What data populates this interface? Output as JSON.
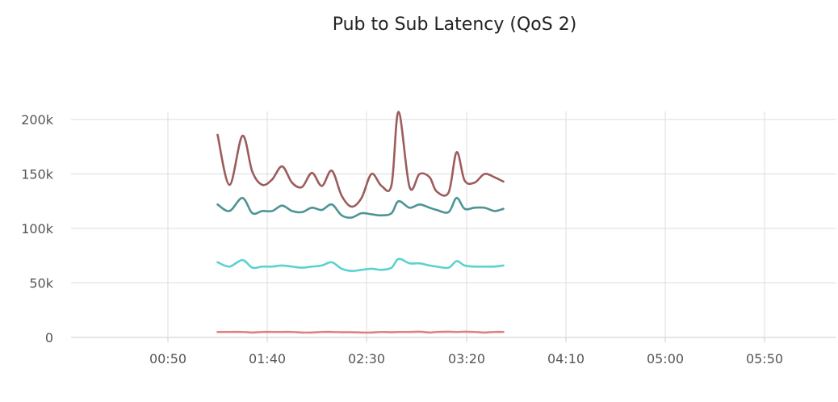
{
  "chart_data": {
    "type": "line",
    "title": "Pub to Sub Latency (QoS 2)",
    "xlabel": "",
    "ylabel": "",
    "x_ticks": [
      "00:50",
      "01:40",
      "02:30",
      "03:20",
      "04:10",
      "05:00",
      "05:50"
    ],
    "y_ticks": [
      "0",
      "50k",
      "100k",
      "150k",
      "200k"
    ],
    "ylim": [
      0,
      200000
    ],
    "grid": true,
    "colors": {
      "grid": "#dddddd",
      "axis": "#cccccc"
    },
    "series": [
      {
        "color": "#9c5c5c",
        "points": [
          [
            0.5,
            186000
          ],
          [
            0.62,
            140000
          ],
          [
            0.75,
            185000
          ],
          [
            0.85,
            152000
          ],
          [
            0.95,
            140000
          ],
          [
            1.05,
            145000
          ],
          [
            1.15,
            157000
          ],
          [
            1.25,
            142000
          ],
          [
            1.35,
            138000
          ],
          [
            1.45,
            151000
          ],
          [
            1.55,
            139000
          ],
          [
            1.65,
            153000
          ],
          [
            1.75,
            130000
          ],
          [
            1.85,
            120000
          ],
          [
            1.95,
            128000
          ],
          [
            2.05,
            150000
          ],
          [
            2.15,
            139000
          ],
          [
            2.25,
            140000
          ],
          [
            2.32,
            207000
          ],
          [
            2.43,
            138000
          ],
          [
            2.53,
            150000
          ],
          [
            2.63,
            147000
          ],
          [
            2.7,
            134000
          ],
          [
            2.82,
            133000
          ],
          [
            2.9,
            170000
          ],
          [
            2.98,
            144000
          ],
          [
            3.08,
            142000
          ],
          [
            3.18,
            150000
          ],
          [
            3.28,
            147000
          ],
          [
            3.37,
            143000
          ]
        ]
      },
      {
        "color": "#4e9494",
        "points": [
          [
            0.5,
            122000
          ],
          [
            0.62,
            116000
          ],
          [
            0.75,
            128000
          ],
          [
            0.85,
            114000
          ],
          [
            0.95,
            116000
          ],
          [
            1.05,
            116000
          ],
          [
            1.15,
            121000
          ],
          [
            1.25,
            116000
          ],
          [
            1.35,
            115000
          ],
          [
            1.45,
            119000
          ],
          [
            1.55,
            117000
          ],
          [
            1.65,
            122000
          ],
          [
            1.75,
            112000
          ],
          [
            1.85,
            110000
          ],
          [
            1.95,
            114000
          ],
          [
            2.05,
            113000
          ],
          [
            2.15,
            112000
          ],
          [
            2.25,
            114000
          ],
          [
            2.32,
            125000
          ],
          [
            2.43,
            119000
          ],
          [
            2.53,
            122000
          ],
          [
            2.63,
            119000
          ],
          [
            2.7,
            117000
          ],
          [
            2.82,
            115000
          ],
          [
            2.9,
            128000
          ],
          [
            2.98,
            118000
          ],
          [
            3.08,
            119000
          ],
          [
            3.18,
            119000
          ],
          [
            3.28,
            116000
          ],
          [
            3.37,
            118000
          ]
        ]
      },
      {
        "color": "#5ad2cd",
        "points": [
          [
            0.5,
            69000
          ],
          [
            0.62,
            65000
          ],
          [
            0.75,
            71000
          ],
          [
            0.85,
            64000
          ],
          [
            0.95,
            65000
          ],
          [
            1.05,
            65000
          ],
          [
            1.15,
            66000
          ],
          [
            1.25,
            65000
          ],
          [
            1.35,
            64000
          ],
          [
            1.45,
            65000
          ],
          [
            1.55,
            66000
          ],
          [
            1.65,
            69000
          ],
          [
            1.75,
            63000
          ],
          [
            1.85,
            61000
          ],
          [
            1.95,
            62000
          ],
          [
            2.05,
            63000
          ],
          [
            2.15,
            62000
          ],
          [
            2.25,
            64000
          ],
          [
            2.32,
            72000
          ],
          [
            2.43,
            68000
          ],
          [
            2.53,
            68000
          ],
          [
            2.63,
            66000
          ],
          [
            2.7,
            65000
          ],
          [
            2.82,
            64000
          ],
          [
            2.9,
            70000
          ],
          [
            2.98,
            66000
          ],
          [
            3.08,
            65000
          ],
          [
            3.18,
            65000
          ],
          [
            3.28,
            65000
          ],
          [
            3.37,
            66000
          ]
        ]
      },
      {
        "color": "#e07f7f",
        "points": [
          [
            0.5,
            5000
          ],
          [
            0.62,
            5000
          ],
          [
            0.75,
            5000
          ],
          [
            0.85,
            4500
          ],
          [
            0.95,
            5000
          ],
          [
            1.05,
            5000
          ],
          [
            1.15,
            5000
          ],
          [
            1.25,
            5000
          ],
          [
            1.35,
            4500
          ],
          [
            1.45,
            4500
          ],
          [
            1.55,
            5000
          ],
          [
            1.65,
            5000
          ],
          [
            1.75,
            4800
          ],
          [
            1.85,
            4800
          ],
          [
            1.95,
            4500
          ],
          [
            2.05,
            4500
          ],
          [
            2.15,
            5000
          ],
          [
            2.25,
            4800
          ],
          [
            2.32,
            5000
          ],
          [
            2.43,
            5000
          ],
          [
            2.53,
            5200
          ],
          [
            2.63,
            4500
          ],
          [
            2.7,
            5000
          ],
          [
            2.82,
            5200
          ],
          [
            2.9,
            5000
          ],
          [
            2.98,
            5200
          ],
          [
            3.08,
            5000
          ],
          [
            3.18,
            4500
          ],
          [
            3.28,
            5000
          ],
          [
            3.37,
            5000
          ]
        ]
      }
    ]
  }
}
